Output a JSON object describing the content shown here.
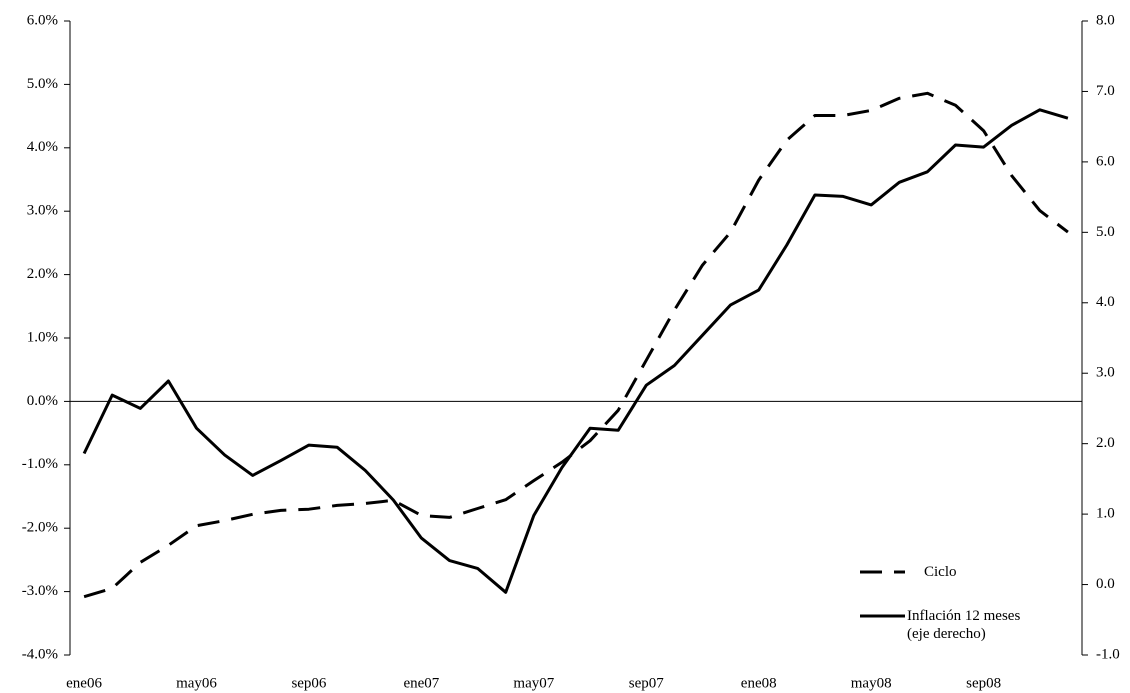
{
  "chart_data": {
    "type": "line",
    "categories": [
      "ene06",
      null,
      null,
      null,
      "may06",
      null,
      null,
      null,
      "sep06",
      null,
      null,
      null,
      "ene07",
      null,
      null,
      null,
      "may07",
      null,
      null,
      null,
      "sep07",
      null,
      null,
      null,
      "ene08",
      null,
      null,
      null,
      "may08",
      null,
      null,
      null,
      "sep08",
      null,
      null,
      null
    ],
    "series": [
      {
        "name": "Ciclo",
        "color": "#000000",
        "line_style": "dashed",
        "values": [
          -3.08,
          -2.95,
          -2.54,
          -2.27,
          -1.96,
          -1.88,
          -1.78,
          -1.72,
          -1.7,
          -1.64,
          -1.61,
          -1.56,
          -1.8,
          -1.83,
          -1.69,
          -1.55,
          -1.25,
          -0.96,
          -0.62,
          -0.14,
          0.65,
          1.44,
          2.15,
          2.67,
          3.49,
          4.12,
          4.51,
          4.51,
          4.59,
          4.78,
          4.86,
          4.67,
          4.27,
          3.56,
          3.01,
          2.67
        ]
      },
      {
        "name": "Inflación 12 meses (eje derecho)",
        "color": "#000000",
        "line_style": "solid",
        "axis": "y2",
        "values": [
          1.86,
          2.69,
          2.5,
          2.89,
          2.22,
          1.84,
          1.55,
          1.76,
          1.98,
          1.95,
          1.62,
          1.2,
          0.66,
          0.34,
          0.23,
          -0.11,
          0.98,
          1.66,
          2.22,
          2.19,
          2.83,
          3.11,
          3.54,
          3.97,
          4.18,
          4.82,
          5.53,
          5.51,
          5.39,
          5.71,
          5.86,
          6.24,
          6.21,
          6.52,
          6.74,
          6.62
        ]
      }
    ],
    "ylim": [
      -4,
      6
    ],
    "yticks": [
      {
        "value": -4,
        "label": "-4.0%"
      },
      {
        "value": -3,
        "label": "-3.0%"
      },
      {
        "value": -2,
        "label": "-2.0%"
      },
      {
        "value": -1,
        "label": "-1.0%"
      },
      {
        "value": 0,
        "label": "0.0%"
      },
      {
        "value": 1,
        "label": "1.0%"
      },
      {
        "value": 2,
        "label": "2.0%"
      },
      {
        "value": 3,
        "label": "3.0%"
      },
      {
        "value": 4,
        "label": "4.0%"
      },
      {
        "value": 5,
        "label": "5.0%"
      },
      {
        "value": 6,
        "label": "6.0%"
      }
    ],
    "y2lim": [
      -1,
      8
    ],
    "y2ticks": [
      {
        "value": -1,
        "label": "-1.0"
      },
      {
        "value": 0,
        "label": "0.0"
      },
      {
        "value": 1,
        "label": "1.0"
      },
      {
        "value": 2,
        "label": "2.0"
      },
      {
        "value": 3,
        "label": "3.0"
      },
      {
        "value": 4,
        "label": "4.0"
      },
      {
        "value": 5,
        "label": "5.0"
      },
      {
        "value": 6,
        "label": "6.0"
      },
      {
        "value": 7,
        "label": "7.0"
      },
      {
        "value": 8,
        "label": "8.0"
      }
    ],
    "legend": "lower-right"
  }
}
